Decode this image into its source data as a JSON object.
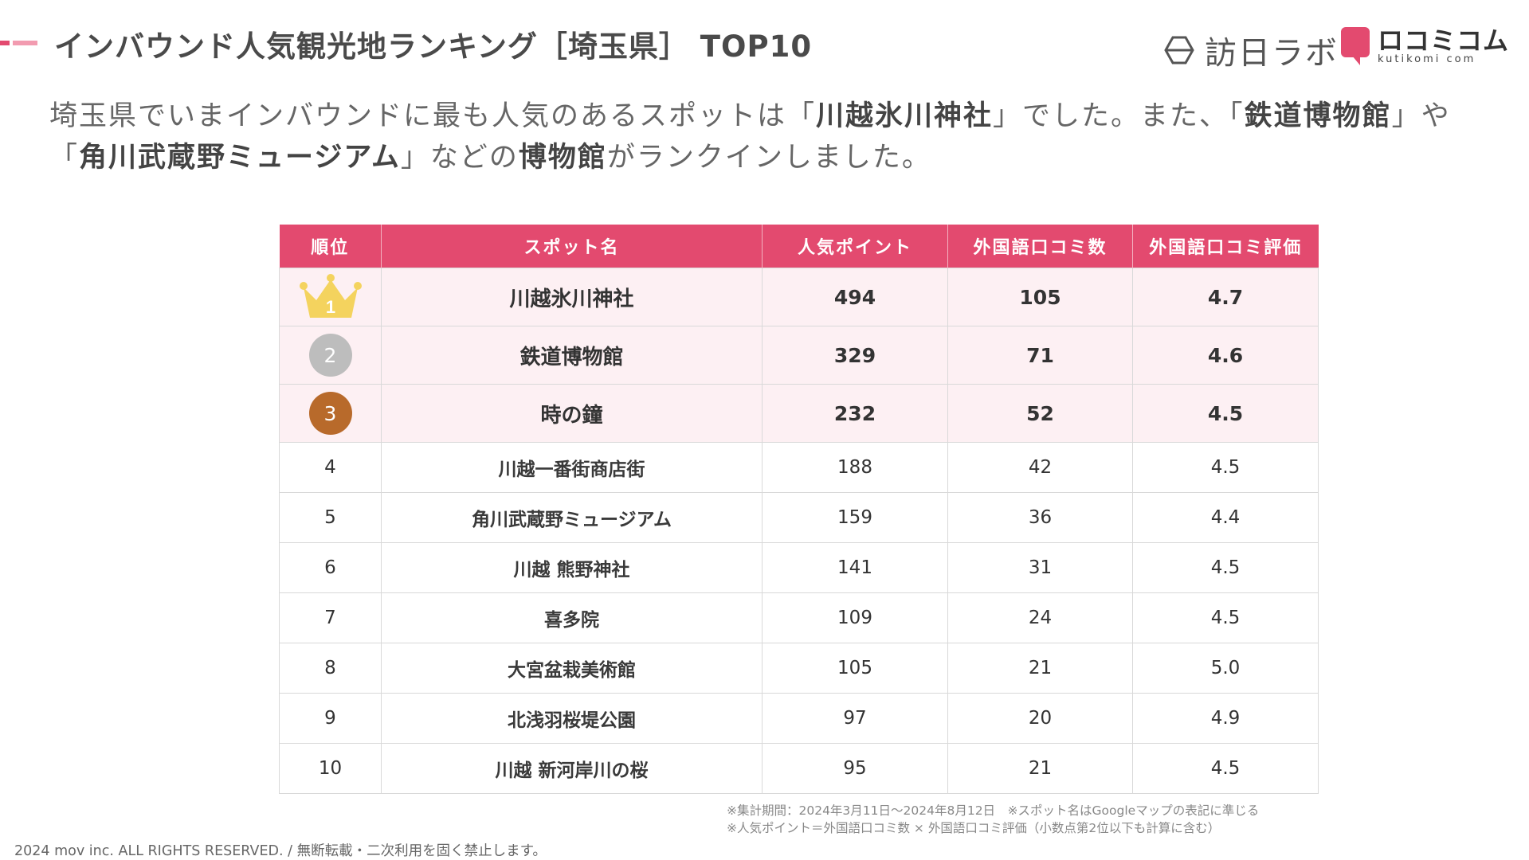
{
  "colors": {
    "accent": "#e34a6f",
    "accent_light": "#f29bb0",
    "header_bg": "#e34a6f",
    "top_row_bg": "#fdf0f3",
    "gold": "#f4d35e",
    "silver": "#bdbdbd",
    "bronze": "#b86a2b"
  },
  "header": {
    "title": "インバウンド人気観光地ランキング［埼玉県］ TOP10"
  },
  "logos": {
    "houjin": "訪日ラボ",
    "kuchikomi_main": "ロコミコム",
    "kuchikomi_sub": "kutikomi com"
  },
  "summary": {
    "p1": "埼玉県でいまインバウンドに最も人気のあるスポットは「",
    "b1": "川越氷川神社",
    "p2": "」でした。また、「",
    "b2": "鉄道博物館",
    "p3": "」や「",
    "b3": "角川武蔵野ミュージアム",
    "p4": "」などの",
    "b4": "博物館",
    "p5": "がランクインしました。"
  },
  "table": {
    "headers": [
      "順位",
      "スポット名",
      "人気ポイント",
      "外国語口コミ数",
      "外国語口コミ評価"
    ],
    "rows": [
      {
        "rank": "1",
        "spot": "川越氷川神社",
        "points": "494",
        "reviews": "105",
        "rating": "4.7"
      },
      {
        "rank": "2",
        "spot": "鉄道博物館",
        "points": "329",
        "reviews": "71",
        "rating": "4.6"
      },
      {
        "rank": "3",
        "spot": "時の鐘",
        "points": "232",
        "reviews": "52",
        "rating": "4.5"
      },
      {
        "rank": "4",
        "spot": "川越一番街商店街",
        "points": "188",
        "reviews": "42",
        "rating": "4.5"
      },
      {
        "rank": "5",
        "spot": "角川武蔵野ミュージアム",
        "points": "159",
        "reviews": "36",
        "rating": "4.4"
      },
      {
        "rank": "6",
        "spot": "川越 熊野神社",
        "points": "141",
        "reviews": "31",
        "rating": "4.5"
      },
      {
        "rank": "7",
        "spot": "喜多院",
        "points": "109",
        "reviews": "24",
        "rating": "4.5"
      },
      {
        "rank": "8",
        "spot": "大宮盆栽美術館",
        "points": "105",
        "reviews": "21",
        "rating": "5.0"
      },
      {
        "rank": "9",
        "spot": "北浅羽桜堤公園",
        "points": "97",
        "reviews": "20",
        "rating": "4.9"
      },
      {
        "rank": "10",
        "spot": "川越 新河岸川の桜",
        "points": "95",
        "reviews": "21",
        "rating": "4.5"
      }
    ]
  },
  "notes": {
    "line1": "※集計期間：2024年3月11日〜2024年8月12日　※スポット名はGoogleマップの表記に準じる",
    "line2": "※人気ポイント＝外国語口コミ数 × 外国語口コミ評価（小数点第2位以下も計算に含む）"
  },
  "copyright": "2024 mov inc. ALL RIGHTS RESERVED. / 無断転載・二次利用を固く禁止します。"
}
